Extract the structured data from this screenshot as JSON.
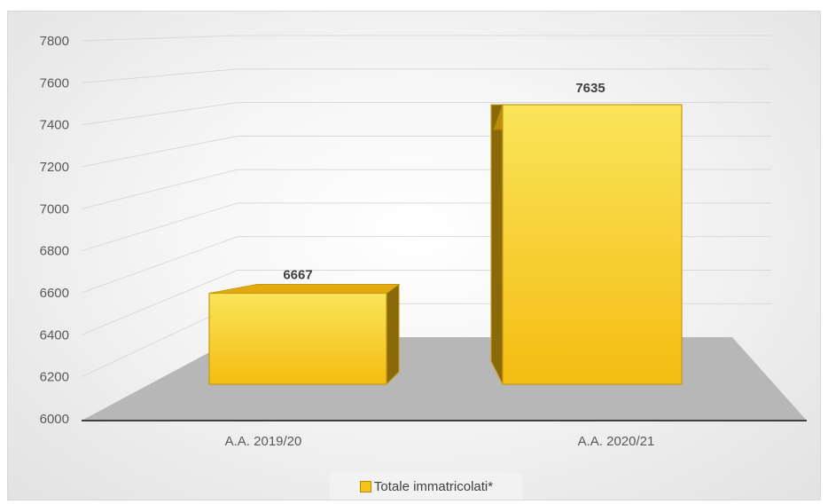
{
  "chart_data": {
    "type": "bar",
    "categories": [
      "A.A. 2019/20",
      "A.A. 2020/21"
    ],
    "series": [
      {
        "name": "Totale immatricolati*",
        "values": [
          6667,
          7635
        ]
      }
    ],
    "data_labels": [
      "6667",
      "7635"
    ],
    "ylim": [
      6000,
      7800
    ],
    "yticks": [
      6000,
      6200,
      6400,
      6600,
      6800,
      7000,
      7200,
      7400,
      7600,
      7800
    ],
    "grid": true,
    "legend_position": "bottom",
    "style": "3d-column",
    "colors": {
      "bar_front": "#f5c416",
      "bar_top": "#e2aa0f",
      "bar_side": "#8a6a08",
      "bar_edge": "#c79a10",
      "floor": "#b7b7b7",
      "grid": "#d9d9d9",
      "axis": "#404040"
    }
  }
}
